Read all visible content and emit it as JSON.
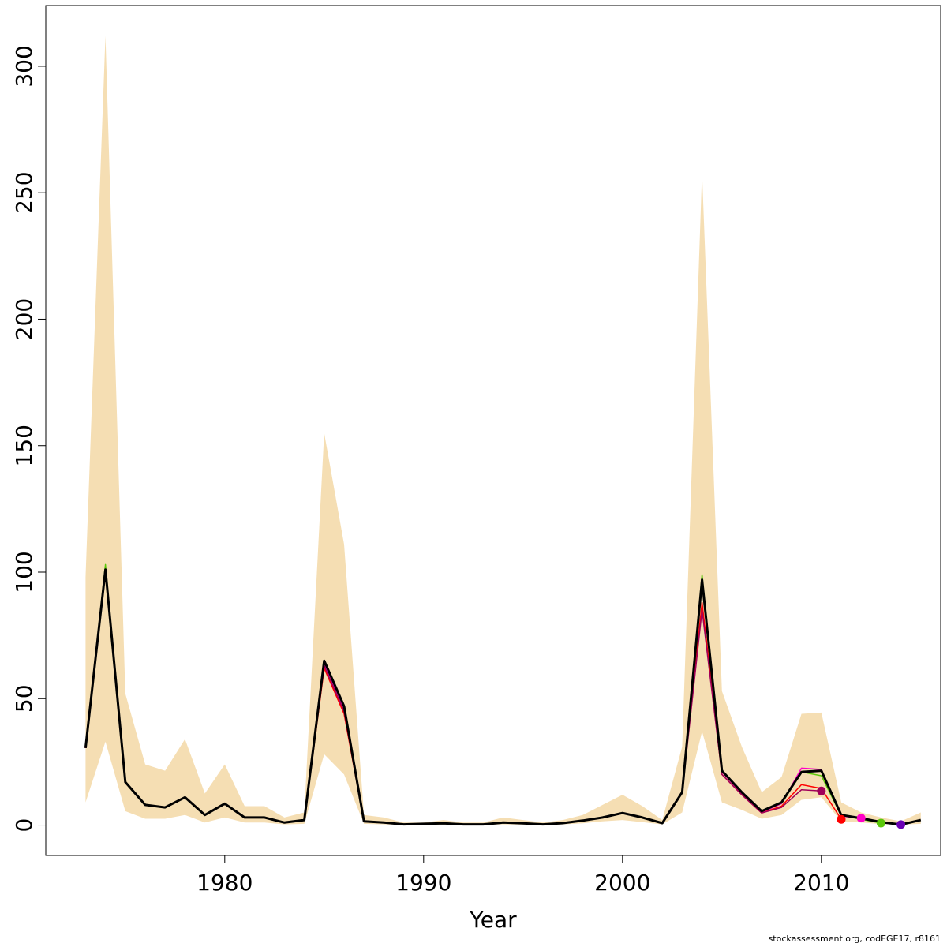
{
  "chart_data": {
    "type": "line",
    "xlabel": "Year",
    "ylabel": "",
    "xlim": [
      1971,
      2016
    ],
    "ylim": [
      -12,
      324
    ],
    "x_ticks": [
      1980,
      1990,
      2000,
      2010
    ],
    "y_ticks": [
      0,
      50,
      100,
      150,
      200,
      250,
      300
    ],
    "grid": false,
    "band_color": "#f5deb3",
    "band": {
      "x": [
        1973,
        1974,
        1975,
        1976,
        1977,
        1978,
        1979,
        1980,
        1981,
        1982,
        1983,
        1984,
        1985,
        1986,
        1987,
        1988,
        1989,
        1990,
        1991,
        1992,
        1993,
        1994,
        1995,
        1996,
        1997,
        1998,
        1999,
        2000,
        2001,
        2002,
        2003,
        2004,
        2005,
        2006,
        2007,
        2008,
        2009,
        2010,
        2011,
        2012,
        2013,
        2014,
        2015
      ],
      "upper": [
        98,
        312,
        52,
        24,
        21.5,
        34,
        12.5,
        24,
        7.5,
        7.5,
        3,
        5,
        155,
        111,
        4,
        3,
        1,
        1,
        2,
        1,
        1,
        3,
        2,
        1,
        2,
        4,
        8,
        12,
        7.5,
        2,
        31,
        258,
        53,
        31,
        13,
        19,
        44,
        44.5,
        9,
        5,
        3,
        1.5,
        5
      ],
      "lower": [
        9,
        33,
        5.5,
        2.5,
        2.5,
        4,
        1,
        3,
        1,
        1,
        0.3,
        0.5,
        28,
        20,
        0.5,
        0.3,
        0.1,
        0.1,
        0.2,
        0.1,
        0.1,
        0.3,
        0.2,
        0.1,
        0.3,
        0.7,
        1.5,
        2,
        1.2,
        0.3,
        5,
        37,
        9,
        6,
        2.5,
        4,
        10,
        11,
        1.5,
        1,
        0.4,
        0.2,
        0.5
      ]
    },
    "series": [
      {
        "color": "#000000",
        "width": 3,
        "x": [
          1973,
          1974,
          1975,
          1976,
          1977,
          1978,
          1979,
          1980,
          1981,
          1982,
          1983,
          1984,
          1985,
          1986,
          1987,
          1988,
          1989,
          1990,
          1991,
          1992,
          1993,
          1994,
          1995,
          1996,
          1997,
          1998,
          1999,
          2000,
          2001,
          2002,
          2003,
          2004,
          2005,
          2006,
          2007,
          2008,
          2009,
          2010,
          2011,
          2012,
          2013,
          2014,
          2015
        ],
        "y": [
          30.5,
          101,
          17,
          8,
          7,
          11,
          4,
          8.5,
          3,
          3,
          1,
          2,
          65,
          47,
          1.5,
          1,
          0.3,
          0.5,
          0.7,
          0.3,
          0.3,
          1,
          0.7,
          0.3,
          0.8,
          1.8,
          3,
          4.8,
          3,
          0.8,
          13,
          97,
          21.5,
          13,
          5.5,
          9,
          21,
          21.5,
          4,
          2.7,
          1.2,
          0.2,
          2
        ]
      },
      {
        "color": "#5bc80a",
        "width": 1.5,
        "x": [
          1973,
          1974,
          1975,
          1976,
          1977,
          1978,
          1979,
          1980,
          1981,
          1982,
          1983,
          1984,
          1985,
          1986,
          1987,
          1988,
          1989,
          1990,
          1991,
          1992,
          1993,
          1994,
          1995,
          1996,
          1997,
          1998,
          1999,
          2000,
          2001,
          2002,
          2003,
          2004,
          2005,
          2006,
          2007,
          2008,
          2009,
          2010,
          2011,
          2012,
          2013
        ],
        "y": [
          30.5,
          103,
          17,
          8,
          7,
          11,
          4,
          8.5,
          3,
          3,
          1,
          2,
          64,
          46,
          1.5,
          1,
          0.3,
          0.5,
          0.7,
          0.3,
          0.3,
          1,
          0.7,
          0.3,
          0.8,
          1.8,
          3,
          4.8,
          3,
          0.8,
          13,
          99,
          21,
          12.5,
          5,
          8.5,
          21,
          19.5,
          3.8,
          2.3,
          0.8
        ]
      },
      {
        "color": "#ff00c8",
        "width": 1.5,
        "x": [
          1973,
          1974,
          1975,
          1976,
          1977,
          1978,
          1979,
          1980,
          1981,
          1982,
          1983,
          1984,
          1985,
          1986,
          1987,
          1988,
          1989,
          1990,
          1991,
          1992,
          1993,
          1994,
          1995,
          1996,
          1997,
          1998,
          1999,
          2000,
          2001,
          2002,
          2003,
          2004,
          2005,
          2006,
          2007,
          2008,
          2009,
          2010,
          2011,
          2012
        ],
        "y": [
          30.5,
          101,
          17,
          8,
          7,
          11,
          4,
          8.5,
          3,
          3,
          1,
          2,
          64,
          46,
          1.5,
          1,
          0.3,
          0.5,
          0.7,
          0.3,
          0.3,
          1,
          0.7,
          0.3,
          0.8,
          1.8,
          3,
          4.8,
          3,
          0.8,
          13,
          96,
          21,
          12.5,
          5,
          8.5,
          22.5,
          22,
          3.5,
          2.8
        ]
      },
      {
        "color": "#ff0000",
        "width": 1.5,
        "x": [
          1973,
          1974,
          1975,
          1976,
          1977,
          1978,
          1979,
          1980,
          1981,
          1982,
          1983,
          1984,
          1985,
          1986,
          1987,
          1988,
          1989,
          1990,
          1991,
          1992,
          1993,
          1994,
          1995,
          1996,
          1997,
          1998,
          1999,
          2000,
          2001,
          2002,
          2003,
          2004,
          2005,
          2006,
          2007,
          2008,
          2009,
          2010,
          2011
        ],
        "y": [
          30.5,
          100,
          17,
          8,
          7,
          11,
          4,
          8.5,
          3,
          3,
          1,
          2,
          62,
          44,
          1.5,
          1,
          0.3,
          0.5,
          0.7,
          0.3,
          0.3,
          1,
          0.7,
          0.3,
          0.8,
          1.8,
          3,
          4.8,
          3,
          0.8,
          13,
          88,
          20,
          12,
          4.8,
          7.5,
          16,
          14.5,
          2.3
        ]
      },
      {
        "color": "#a0005a",
        "width": 1.5,
        "x": [
          1973,
          1974,
          1975,
          1976,
          1977,
          1978,
          1979,
          1980,
          1981,
          1982,
          1983,
          1984,
          1985,
          1986,
          1987,
          1988,
          1989,
          1990,
          1991,
          1992,
          1993,
          1994,
          1995,
          1996,
          1997,
          1998,
          1999,
          2000,
          2001,
          2002,
          2003,
          2004,
          2005,
          2006,
          2007,
          2008,
          2009,
          2010
        ],
        "y": [
          30.5,
          100,
          17,
          8,
          7,
          11,
          4,
          8.5,
          3,
          3,
          1,
          2,
          63,
          45,
          1.5,
          1,
          0.3,
          0.5,
          0.7,
          0.3,
          0.3,
          1,
          0.7,
          0.3,
          0.8,
          1.8,
          3,
          4.8,
          3,
          0.8,
          13,
          85,
          20,
          12,
          4.8,
          7,
          14,
          13.5
        ]
      }
    ],
    "end_points": [
      {
        "x": 2010,
        "y": 13.5,
        "color": "#a0005a"
      },
      {
        "x": 2011,
        "y": 2.3,
        "color": "#ff0000"
      },
      {
        "x": 2012,
        "y": 2.8,
        "color": "#ff00c8"
      },
      {
        "x": 2013,
        "y": 0.8,
        "color": "#5bc80a"
      },
      {
        "x": 2014,
        "y": 0.2,
        "color": "#6a00b4"
      }
    ]
  },
  "credit": "stockassessment.org, codEGE17, r8161"
}
